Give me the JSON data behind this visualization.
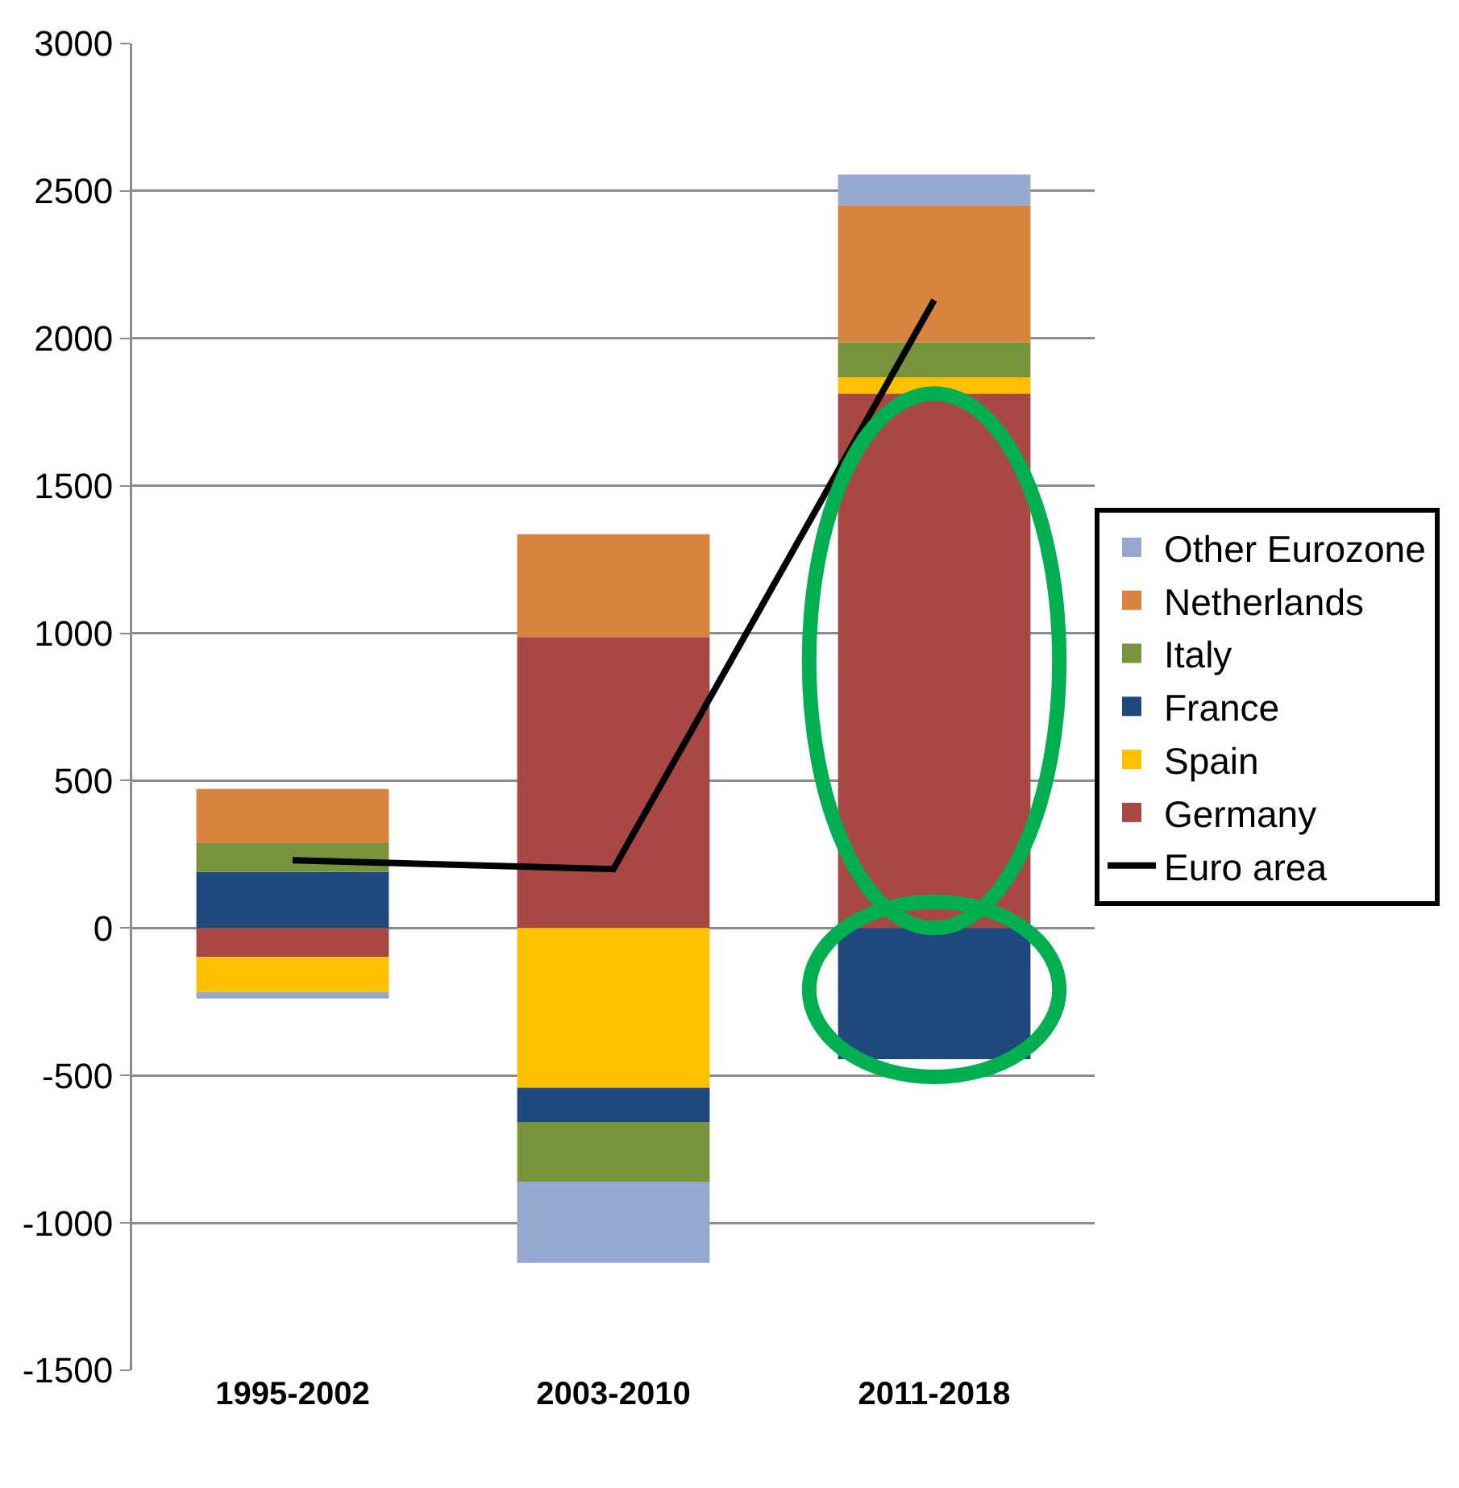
{
  "chart_data": {
    "type": "bar",
    "stacked": true,
    "categories": [
      "1995-2002",
      "2003-2010",
      "2011-2018"
    ],
    "series": [
      {
        "name": "Germany",
        "color": "#a84744",
        "values": [
          -98,
          987,
          1813
        ]
      },
      {
        "name": "Spain",
        "color": "#ffc000",
        "values": [
          -119,
          -542,
          55
        ]
      },
      {
        "name": "France",
        "color": "#1f497d",
        "values": [
          191,
          -116,
          -445
        ]
      },
      {
        "name": "Italy",
        "color": "#77933c",
        "values": [
          97,
          -202,
          119
        ]
      },
      {
        "name": "Netherlands",
        "color": "#d9843e",
        "values": [
          184,
          349,
          464
        ]
      },
      {
        "name": "Other Eurozone",
        "color": "#95a9d1",
        "values": [
          -22,
          -276,
          105
        ]
      },
      {
        "name": "Euro area",
        "type": "line",
        "color": "#000000",
        "values": [
          230,
          200,
          2130
        ]
      }
    ],
    "ylim": [
      -1500,
      3000
    ],
    "yticks": [
      -1500,
      -1000,
      -500,
      0,
      500,
      1000,
      1500,
      2000,
      2500,
      3000
    ],
    "grid": "y",
    "legend": "right",
    "marker": "none",
    "line_style": "solid"
  }
}
